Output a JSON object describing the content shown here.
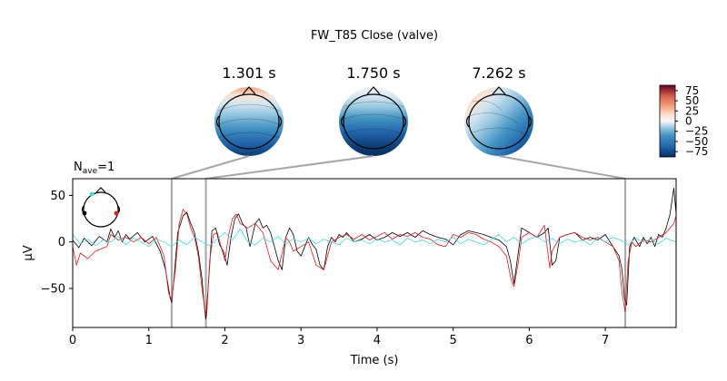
{
  "chart_data": {
    "type": "line",
    "title": "FW_T85 Close (valve)",
    "nave_label": {
      "prefix": "N",
      "sub": "ave",
      "suffix": "=1"
    },
    "xlabel": "Time (s)",
    "ylabel": "µV",
    "xlim": [
      0,
      7.93
    ],
    "ylim": [
      -92,
      68
    ],
    "xticks": [
      0,
      1,
      2,
      3,
      4,
      5,
      6,
      7
    ],
    "yticks": [
      -50,
      0,
      50
    ],
    "topomap_times": [
      "1.301 s",
      "1.750 s",
      "7.262 s"
    ],
    "topomap_time_values": [
      1.301,
      1.75,
      7.262
    ],
    "colorbar": {
      "min": -88,
      "max": 88,
      "ticks": [
        75,
        50,
        25,
        0,
        -25,
        -50,
        -75
      ]
    },
    "series": [
      {
        "color": "#000000",
        "x": [
          0,
          0.08,
          0.15,
          0.25,
          0.35,
          0.45,
          0.5,
          0.55,
          0.6,
          0.65,
          0.7,
          0.75,
          0.85,
          0.95,
          1.05,
          1.15,
          1.22,
          1.28,
          1.3,
          1.33,
          1.38,
          1.45,
          1.5,
          1.55,
          1.6,
          1.65,
          1.7,
          1.73,
          1.75,
          1.78,
          1.83,
          1.88,
          1.93,
          1.98,
          2.03,
          2.08,
          2.13,
          2.18,
          2.23,
          2.28,
          2.33,
          2.4,
          2.45,
          2.5,
          2.55,
          2.6,
          2.65,
          2.7,
          2.75,
          2.8,
          2.85,
          2.9,
          2.95,
          3.0,
          3.05,
          3.1,
          3.15,
          3.2,
          3.25,
          3.3,
          3.35,
          3.4,
          3.45,
          3.5,
          3.55,
          3.6,
          3.7,
          3.8,
          3.9,
          4.0,
          4.1,
          4.2,
          4.3,
          4.4,
          4.5,
          4.6,
          4.7,
          4.8,
          4.9,
          5.0,
          5.1,
          5.2,
          5.3,
          5.4,
          5.5,
          5.6,
          5.7,
          5.75,
          5.8,
          5.85,
          5.9,
          6.0,
          6.1,
          6.2,
          6.25,
          6.3,
          6.35,
          6.4,
          6.5,
          6.6,
          6.7,
          6.8,
          6.9,
          7.0,
          7.1,
          7.18,
          7.22,
          7.25,
          7.28,
          7.32,
          7.38,
          7.45,
          7.5,
          7.55,
          7.6,
          7.65,
          7.7,
          7.75,
          7.8,
          7.85,
          7.9,
          7.93
        ],
        "y": [
          2,
          -6,
          4,
          -4,
          6,
          0,
          14,
          5,
          12,
          0,
          8,
          3,
          10,
          0,
          6,
          -10,
          -30,
          -60,
          -65,
          -40,
          10,
          28,
          32,
          20,
          10,
          -10,
          -40,
          -70,
          -83,
          -50,
          12,
          15,
          -3,
          -10,
          -25,
          5,
          25,
          30,
          20,
          15,
          -5,
          20,
          25,
          15,
          18,
          10,
          -5,
          -20,
          -30,
          5,
          15,
          8,
          -10,
          -15,
          -5,
          5,
          -3,
          -8,
          -25,
          -30,
          -5,
          5,
          0,
          8,
          5,
          10,
          0,
          3,
          8,
          2,
          5,
          10,
          6,
          10,
          5,
          12,
          8,
          5,
          3,
          -3,
          8,
          12,
          10,
          8,
          5,
          2,
          -5,
          -20,
          -45,
          -15,
          15,
          10,
          5,
          10,
          15,
          -25,
          -20,
          5,
          8,
          10,
          2,
          5,
          2,
          8,
          -5,
          -15,
          -30,
          -60,
          -68,
          -5,
          5,
          -5,
          5,
          -2,
          5,
          -5,
          8,
          5,
          15,
          30,
          58,
          30
        ]
      },
      {
        "color": "#e41a1c",
        "x": [
          0,
          0.05,
          0.1,
          0.2,
          0.3,
          0.45,
          0.5,
          0.6,
          0.7,
          0.8,
          0.9,
          1.0,
          1.1,
          1.2,
          1.26,
          1.3,
          1.35,
          1.4,
          1.45,
          1.5,
          1.55,
          1.6,
          1.65,
          1.7,
          1.74,
          1.76,
          1.8,
          1.85,
          1.9,
          1.95,
          2.0,
          2.05,
          2.1,
          2.15,
          2.2,
          2.3,
          2.4,
          2.5,
          2.6,
          2.7,
          2.8,
          2.85,
          2.9,
          3.0,
          3.1,
          3.2,
          3.3,
          3.4,
          3.5,
          3.6,
          3.7,
          3.8,
          3.9,
          4.0,
          4.1,
          4.2,
          4.3,
          4.4,
          4.5,
          4.6,
          4.7,
          4.8,
          4.9,
          5.0,
          5.1,
          5.2,
          5.3,
          5.4,
          5.5,
          5.6,
          5.7,
          5.76,
          5.8,
          5.86,
          5.9,
          6.0,
          6.1,
          6.2,
          6.27,
          6.3,
          6.4,
          6.5,
          6.6,
          6.7,
          6.8,
          6.9,
          7.0,
          7.1,
          7.18,
          7.22,
          7.26,
          7.3,
          7.35,
          7.4,
          7.5,
          7.6,
          7.7,
          7.8,
          7.9,
          7.93
        ],
        "y": [
          -5,
          -25,
          -12,
          -18,
          -10,
          -5,
          8,
          2,
          5,
          0,
          5,
          -2,
          5,
          -15,
          -55,
          -62,
          -30,
          20,
          35,
          30,
          15,
          5,
          -15,
          -50,
          -75,
          -80,
          -20,
          8,
          10,
          -5,
          -20,
          8,
          25,
          30,
          20,
          15,
          20,
          10,
          -20,
          -30,
          5,
          0,
          -10,
          -5,
          0,
          -25,
          -30,
          0,
          5,
          8,
          3,
          8,
          2,
          6,
          10,
          3,
          8,
          6,
          10,
          5,
          3,
          -3,
          -5,
          8,
          5,
          10,
          8,
          3,
          0,
          -5,
          -15,
          -40,
          -48,
          -20,
          5,
          10,
          5,
          18,
          -28,
          -10,
          5,
          8,
          10,
          5,
          2,
          5,
          0,
          -5,
          -20,
          -55,
          -75,
          -20,
          0,
          -5,
          2,
          0,
          5,
          10,
          20,
          28
        ]
      },
      {
        "color": "#3ddbdb",
        "x": [
          0,
          0.1,
          0.2,
          0.3,
          0.4,
          0.5,
          0.6,
          0.7,
          0.8,
          0.9,
          1.0,
          1.1,
          1.2,
          1.3,
          1.4,
          1.5,
          1.6,
          1.7,
          1.8,
          1.9,
          2.0,
          2.1,
          2.2,
          2.3,
          2.4,
          2.5,
          2.6,
          2.7,
          2.8,
          2.9,
          3.0,
          3.1,
          3.2,
          3.3,
          3.4,
          3.5,
          3.6,
          3.7,
          3.8,
          3.9,
          4.0,
          4.1,
          4.2,
          4.3,
          4.4,
          4.5,
          4.6,
          4.7,
          4.8,
          4.9,
          5.0,
          5.1,
          5.2,
          5.3,
          5.4,
          5.5,
          5.6,
          5.7,
          5.8,
          5.9,
          6.0,
          6.1,
          6.2,
          6.3,
          6.4,
          6.5,
          6.6,
          6.7,
          6.8,
          6.9,
          7.0,
          7.1,
          7.2,
          7.3,
          7.4,
          7.5,
          7.6,
          7.7,
          7.8,
          7.93
        ],
        "y": [
          8,
          -2,
          3,
          -4,
          2,
          0,
          6,
          -3,
          4,
          0,
          -5,
          3,
          0,
          -5,
          2,
          -3,
          5,
          0,
          -4,
          3,
          10,
          2,
          14,
          0,
          -3,
          4,
          0,
          6,
          -2,
          3,
          0,
          4,
          -2,
          3,
          0,
          -3,
          4,
          0,
          2,
          -2,
          3,
          0,
          2,
          -3,
          4,
          0,
          2,
          -2,
          3,
          0,
          5,
          -2,
          3,
          0,
          -3,
          2,
          8,
          0,
          5,
          -2,
          3,
          6,
          0,
          4,
          -2,
          3,
          0,
          2,
          -3,
          4,
          0,
          5,
          2,
          -3,
          4,
          0,
          3,
          -2,
          4,
          0
        ]
      }
    ]
  }
}
